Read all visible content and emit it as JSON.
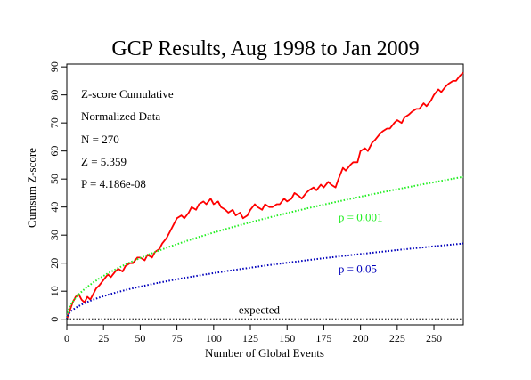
{
  "chart_data": {
    "type": "line",
    "title": "GCP Results, Aug 1998 to Jan 2009",
    "xlabel": "Number of Global Events",
    "ylabel": "Cumsum Z-score",
    "xlim": [
      0,
      270
    ],
    "ylim": [
      -2,
      91
    ],
    "x_ticks": [
      0,
      25,
      50,
      75,
      100,
      125,
      150,
      175,
      200,
      225,
      250
    ],
    "y_ticks": [
      0,
      10,
      20,
      30,
      40,
      50,
      60,
      70,
      80,
      90
    ],
    "grid": false,
    "stats": {
      "heading": "Z-score Cumulative",
      "subheading": "Normalized Data",
      "n": "N = 270",
      "z": "Z = 5.359",
      "p": "P = 4.186e-08"
    },
    "series": [
      {
        "name": "",
        "color": "#ff0000",
        "style": "solid",
        "x": [
          0,
          2,
          4,
          6,
          8,
          10,
          12,
          14,
          16,
          18,
          20,
          22,
          25,
          28,
          30,
          33,
          35,
          38,
          40,
          43,
          45,
          48,
          50,
          53,
          55,
          58,
          60,
          63,
          65,
          68,
          70,
          73,
          75,
          78,
          80,
          83,
          85,
          88,
          90,
          93,
          95,
          98,
          100,
          103,
          105,
          108,
          110,
          113,
          115,
          118,
          120,
          123,
          125,
          128,
          130,
          133,
          135,
          138,
          140,
          143,
          145,
          148,
          150,
          153,
          155,
          158,
          160,
          163,
          165,
          168,
          170,
          173,
          175,
          178,
          180,
          183,
          185,
          188,
          190,
          193,
          195,
          198,
          200,
          203,
          205,
          208,
          210,
          213,
          215,
          218,
          220,
          223,
          225,
          228,
          230,
          233,
          235,
          238,
          240,
          243,
          245,
          248,
          250,
          253,
          255,
          258,
          260,
          263,
          265,
          268,
          270
        ],
        "y": [
          0,
          3,
          6,
          8,
          9,
          7,
          6,
          8,
          7,
          9,
          11,
          12,
          14,
          16,
          15,
          17,
          18,
          17,
          19,
          20,
          20,
          22,
          22,
          21,
          23,
          22,
          24,
          25,
          27,
          29,
          31,
          34,
          36,
          37,
          36,
          38,
          40,
          39,
          41,
          42,
          41,
          43,
          41,
          42,
          40,
          39,
          38,
          39,
          37,
          38,
          36,
          37,
          39,
          41,
          40,
          39,
          41,
          40,
          40,
          41,
          41,
          43,
          42,
          43,
          45,
          44,
          43,
          45,
          46,
          47,
          46,
          48,
          47,
          49,
          48,
          47,
          50,
          54,
          53,
          55,
          56,
          56,
          60,
          61,
          60,
          63,
          64,
          66,
          67,
          68,
          68,
          70,
          71,
          70,
          72,
          73,
          74,
          75,
          75,
          77,
          76,
          78,
          80,
          82,
          81,
          83,
          84,
          85,
          85,
          87,
          88
        ]
      },
      {
        "name": "",
        "color": "#22ee22",
        "style": "dotted",
        "envelope_p": 0.001,
        "scale": 3.09
      },
      {
        "name": "",
        "color": "#0000bb",
        "style": "dotted",
        "envelope_p": 0.05,
        "scale": 1.645
      },
      {
        "name": "",
        "color": "#000000",
        "style": "dotted",
        "constant": 0
      }
    ],
    "annotations": [
      {
        "text": "p = 0.001",
        "x": 185,
        "y": 35,
        "color": "#22ee22"
      },
      {
        "text": "p = 0.05",
        "x": 185,
        "y": 16.5,
        "color": "#0000bb"
      },
      {
        "text": "expected",
        "x": 117,
        "y": 2,
        "color": "#000000"
      }
    ]
  }
}
